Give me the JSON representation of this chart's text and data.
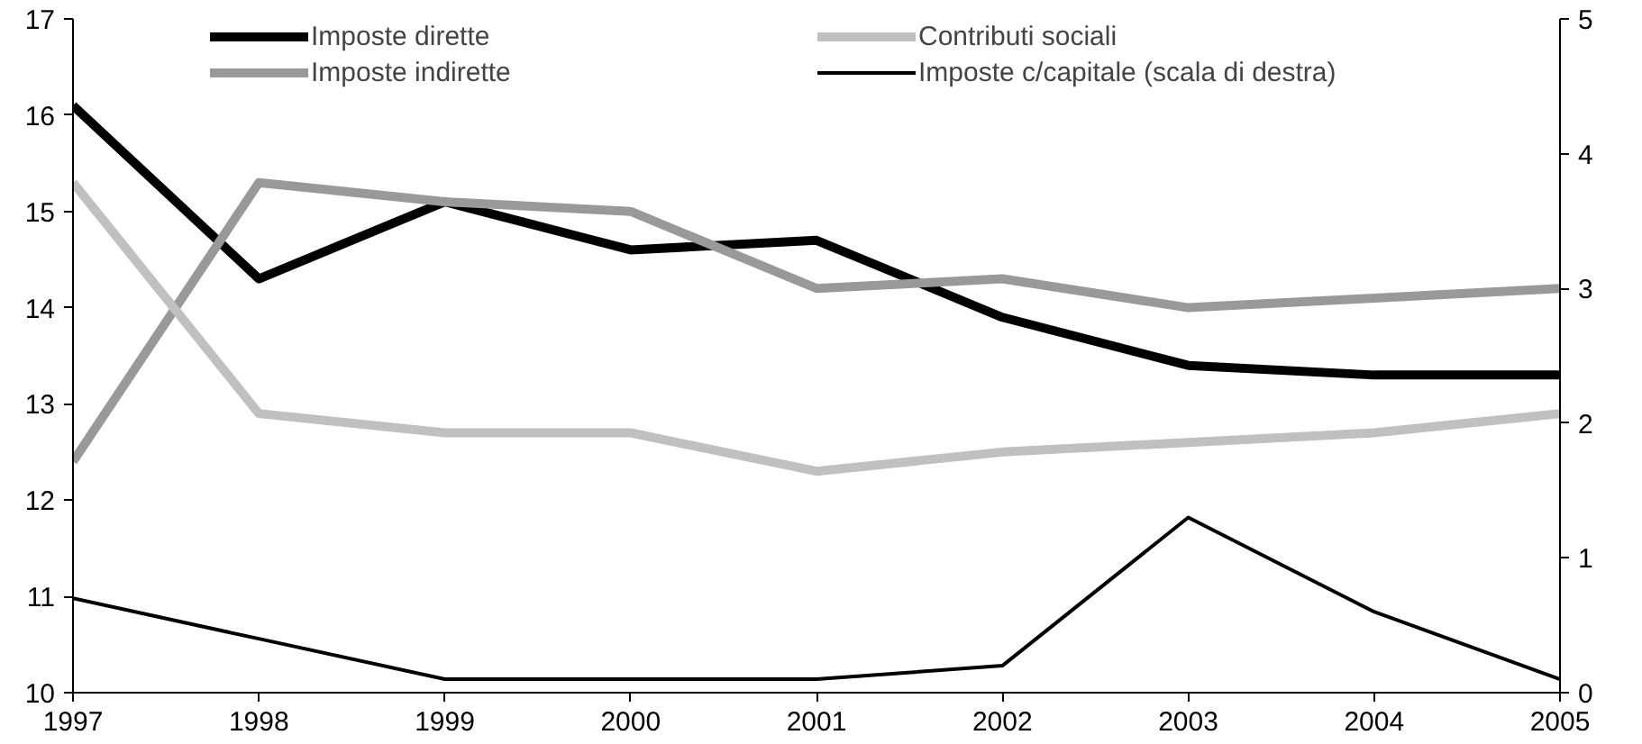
{
  "chart_data": {
    "type": "line",
    "x": [
      1997,
      1998,
      1999,
      2000,
      2001,
      2002,
      2003,
      2004,
      2005
    ],
    "xlim": [
      1997,
      2005
    ],
    "xticks": [
      1997,
      1998,
      1999,
      2000,
      2001,
      2002,
      2003,
      2004,
      2005
    ],
    "ylim": [
      10,
      17
    ],
    "yticks": [
      10,
      11,
      12,
      13,
      14,
      15,
      16,
      17
    ],
    "y2lim": [
      0,
      5
    ],
    "y2ticks": [
      0,
      1,
      2,
      3,
      4,
      5
    ],
    "grid": false,
    "legend": "top",
    "marker": "none",
    "line_style": "solid",
    "series": [
      {
        "name": "Imposte dirette",
        "color": "#000000",
        "values": [
          16.1,
          14.3,
          15.1,
          14.6,
          14.7,
          13.9,
          13.4,
          13.3,
          13.3
        ]
      },
      {
        "name": "Imposte indirette",
        "color": "#999999",
        "values": [
          12.4,
          15.3,
          15.1,
          15.0,
          14.2,
          14.3,
          14.0,
          14.1,
          14.2
        ]
      },
      {
        "name": "Contributi sociali",
        "color": "#c0c0c0",
        "values": [
          15.3,
          12.9,
          12.7,
          12.7,
          12.3,
          12.5,
          12.6,
          12.7,
          12.9
        ]
      },
      {
        "name": "Imposte c/capitale (scala di destra)",
        "color": "#000000",
        "axis": "y2",
        "values": [
          0.7,
          0.4,
          0.1,
          0.1,
          0.1,
          0.2,
          1.3,
          0.6,
          0.1
        ]
      }
    ]
  }
}
